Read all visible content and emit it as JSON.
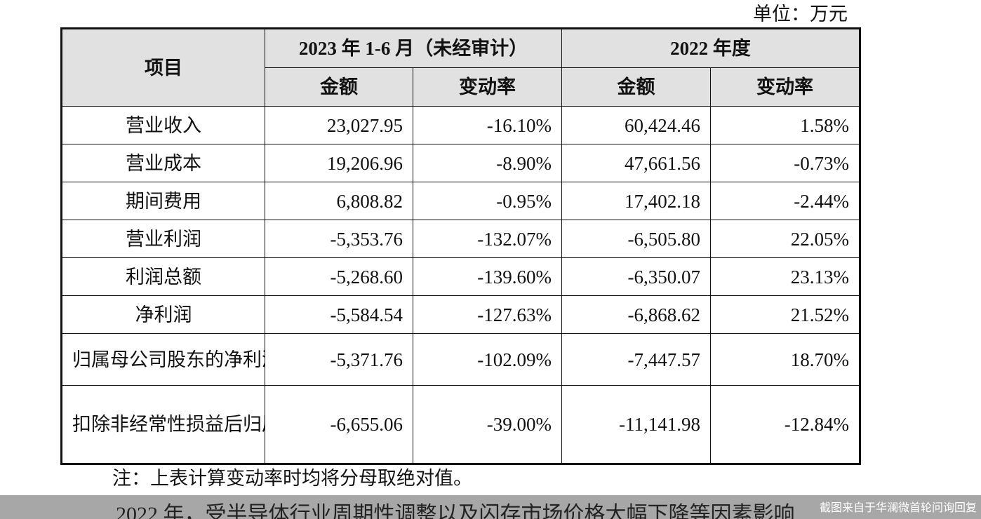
{
  "unit_label": "单位：万元",
  "table": {
    "header": {
      "item": "项目",
      "period1": "2023 年 1-6 月（未经审计）",
      "period2": "2022 年度",
      "amount": "金额",
      "change_rate": "变动率"
    },
    "rows": [
      {
        "item": "营业收入",
        "h1_amount": "23,027.95",
        "h1_change": "-16.10%",
        "y2022_amount": "60,424.46",
        "y2022_change": "1.58%"
      },
      {
        "item": "营业成本",
        "h1_amount": "19,206.96",
        "h1_change": "-8.90%",
        "y2022_amount": "47,661.56",
        "y2022_change": "-0.73%"
      },
      {
        "item": "期间费用",
        "h1_amount": "6,808.82",
        "h1_change": "-0.95%",
        "y2022_amount": "17,402.18",
        "y2022_change": "-2.44%"
      },
      {
        "item": "营业利润",
        "h1_amount": "-5,353.76",
        "h1_change": "-132.07%",
        "y2022_amount": "-6,505.80",
        "y2022_change": "22.05%"
      },
      {
        "item": "利润总额",
        "h1_amount": "-5,268.60",
        "h1_change": "-139.60%",
        "y2022_amount": "-6,350.07",
        "y2022_change": "23.13%"
      },
      {
        "item": "净利润",
        "h1_amount": "-5,584.54",
        "h1_change": "-127.63%",
        "y2022_amount": "-6,868.62",
        "y2022_change": "21.52%"
      },
      {
        "item": "归属母公司股东的净利润",
        "h1_amount": "-5,371.76",
        "h1_change": "-102.09%",
        "y2022_amount": "-7,447.57",
        "y2022_change": "18.70%"
      },
      {
        "item": "扣除非经常性损益后归属母公司股东的净利润",
        "h1_amount": "-6,655.06",
        "h1_change": "-39.00%",
        "y2022_amount": "-11,141.98",
        "y2022_change": "-12.84%"
      }
    ]
  },
  "note": "注：上表计算变动率时均将分母取绝对值。",
  "cut_text": "2022 年，受半导体行业周期性调整以及闪存市场价格大幅下降等因素影响",
  "watermark": "截图来自于华澜微首轮问询回复"
}
